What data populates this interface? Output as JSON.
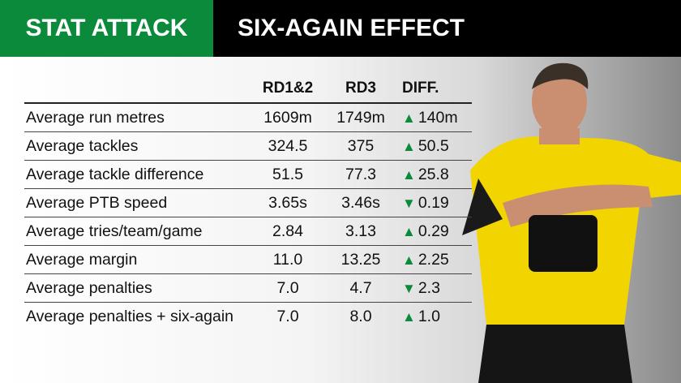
{
  "header": {
    "left": "STAT ATTACK",
    "right": "SIX-AGAIN EFFECT"
  },
  "table": {
    "columns": [
      "RD1&2",
      "RD3",
      "DIFF."
    ],
    "rows": [
      {
        "label": "Average run metres",
        "rd12": "1609m",
        "rd3": "1749m",
        "arrow": "▲",
        "diff": "140m"
      },
      {
        "label": "Average tackles",
        "rd12": "324.5",
        "rd3": "375",
        "arrow": "▲",
        "diff": "50.5"
      },
      {
        "label": "Average tackle difference",
        "rd12": "51.5",
        "rd3": "77.3",
        "arrow": "▲",
        "diff": "25.8"
      },
      {
        "label": "Average PTB speed",
        "rd12": "3.65s",
        "rd3": "3.46s",
        "arrow": "▼",
        "diff": "0.19"
      },
      {
        "label": "Average tries/team/game",
        "rd12": "2.84",
        "rd3": "3.13",
        "arrow": "▲",
        "diff": "0.29"
      },
      {
        "label": "Average margin",
        "rd12": "11.0",
        "rd3": "13.25",
        "arrow": "▲",
        "diff": "2.25"
      },
      {
        "label": "Average penalties",
        "rd12": "7.0",
        "rd3": "4.7",
        "arrow": "▼",
        "diff": "2.3"
      },
      {
        "label": "Average penalties + six-again",
        "rd12": "7.0",
        "rd3": "8.0",
        "arrow": "▲",
        "diff": "1.0"
      }
    ]
  }
}
